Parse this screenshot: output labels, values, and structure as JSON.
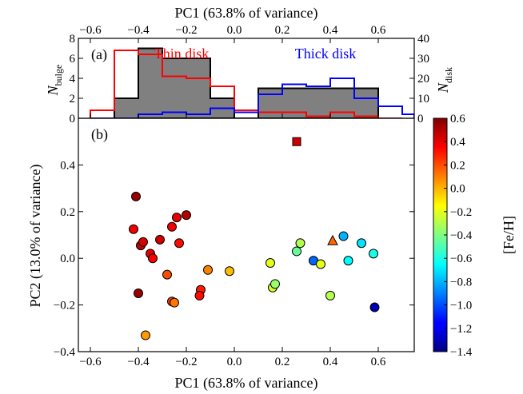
{
  "colors": {
    "bulge_fill": "#808080",
    "thin_disk": "#ff0000",
    "thick_disk": "#0000ff",
    "marker_edge": "#000000"
  },
  "chart_data": [
    {
      "type": "bar",
      "panel": "(a)",
      "title": "PC1 (63.8% of variance)",
      "xlabel": "PC1 (63.8% of variance)",
      "ylabel": "N",
      "ylabel_sub": "bulge",
      "y2label": "N",
      "y2label_sub": "disk",
      "xlim": [
        -0.65,
        0.75
      ],
      "ylim": [
        0,
        8
      ],
      "y2lim": [
        0,
        40
      ],
      "xticks": [
        "−0.6",
        "−0.4",
        "−0.2",
        "0.0",
        "0.2",
        "0.4",
        "0.6"
      ],
      "xtick_values": [
        -0.6,
        -0.4,
        -0.2,
        0.0,
        0.2,
        0.4,
        0.6
      ],
      "yticks": [
        "0",
        "2",
        "4",
        "6",
        "8"
      ],
      "ytick_values": [
        0,
        2,
        4,
        6,
        8
      ],
      "y2ticks": [
        "0",
        "10",
        "20",
        "30",
        "40"
      ],
      "y2tick_values": [
        0,
        10,
        20,
        30,
        40
      ],
      "series": [
        {
          "name": "Bulge",
          "axis": "left",
          "style": "filled",
          "bin_edges": [
            -0.5,
            -0.4,
            -0.3,
            -0.1,
            0.0,
            0.1,
            0.4,
            0.6
          ],
          "values": [
            2,
            7,
            6,
            2,
            0,
            3,
            3
          ]
        },
        {
          "name": "Thin disk",
          "axis": "right",
          "style": "step",
          "bin_edges": [
            -0.6,
            -0.5,
            -0.4,
            -0.3,
            -0.2,
            -0.1,
            0.0,
            0.1,
            0.2,
            0.3,
            0.4,
            0.5,
            0.6,
            0.7
          ],
          "values": [
            4,
            34,
            32,
            21,
            20,
            16,
            4,
            3,
            3,
            1,
            3,
            1,
            0
          ]
        },
        {
          "name": "Thick disk",
          "axis": "right",
          "style": "step",
          "bin_edges": [
            -0.6,
            -0.5,
            -0.4,
            -0.3,
            -0.2,
            -0.1,
            0.0,
            0.1,
            0.2,
            0.3,
            0.4,
            0.5,
            0.6,
            0.7,
            0.75
          ],
          "values": [
            0,
            0,
            2,
            3,
            2,
            5,
            3,
            12,
            17,
            16,
            20,
            10,
            6,
            2
          ]
        }
      ],
      "annotations": [
        {
          "text": "Thin disk",
          "x": -0.22,
          "y": 6.0,
          "color": "#ff0000"
        },
        {
          "text": "Thick disk",
          "x": 0.38,
          "y": 6.0,
          "color": "#0000ff"
        }
      ]
    },
    {
      "type": "scatter",
      "panel": "(b)",
      "xlabel": "PC1 (63.8% of variance)",
      "ylabel": "PC2 (13.0% of variance)",
      "xlim": [
        -0.65,
        0.75
      ],
      "ylim": [
        -0.4,
        0.6
      ],
      "xticks": [
        "−0.6",
        "−0.4",
        "−0.2",
        "0.0",
        "0.2",
        "0.4",
        "0.6"
      ],
      "xtick_values": [
        -0.6,
        -0.4,
        -0.2,
        0.0,
        0.2,
        0.4,
        0.6
      ],
      "yticks": [
        "−0.4",
        "−0.2",
        "0.0",
        "0.2",
        "0.4"
      ],
      "ytick_values": [
        -0.4,
        -0.2,
        0.0,
        0.2,
        0.4
      ],
      "colorbar": {
        "label": "[Fe/H]",
        "min": -1.4,
        "max": 0.6,
        "colormap": "jet",
        "ticks": [
          "0.6",
          "0.4",
          "0.2",
          "0.0",
          "−0.2",
          "−0.4",
          "−0.6",
          "−0.8",
          "−1.0",
          "−1.2",
          "−1.4"
        ],
        "tick_values": [
          0.6,
          0.4,
          0.2,
          0.0,
          -0.2,
          -0.4,
          -0.6,
          -0.8,
          -1.0,
          -1.2,
          -1.4
        ]
      },
      "points": [
        {
          "x": -0.41,
          "y": 0.265,
          "feh": 0.55,
          "marker": "circle"
        },
        {
          "x": -0.42,
          "y": 0.125,
          "feh": 0.38,
          "marker": "circle"
        },
        {
          "x": -0.39,
          "y": 0.055,
          "feh": 0.46,
          "marker": "circle"
        },
        {
          "x": -0.38,
          "y": 0.07,
          "feh": 0.42,
          "marker": "circle"
        },
        {
          "x": -0.35,
          "y": 0.02,
          "feh": 0.4,
          "marker": "circle"
        },
        {
          "x": -0.34,
          "y": 0.0,
          "feh": 0.36,
          "marker": "circle"
        },
        {
          "x": -0.31,
          "y": 0.08,
          "feh": 0.45,
          "marker": "circle"
        },
        {
          "x": -0.26,
          "y": 0.135,
          "feh": 0.38,
          "marker": "circle"
        },
        {
          "x": -0.24,
          "y": 0.175,
          "feh": 0.4,
          "marker": "circle"
        },
        {
          "x": -0.2,
          "y": 0.185,
          "feh": 0.5,
          "marker": "circle"
        },
        {
          "x": -0.23,
          "y": 0.065,
          "feh": 0.33,
          "marker": "circle"
        },
        {
          "x": -0.28,
          "y": -0.07,
          "feh": 0.2,
          "marker": "circle"
        },
        {
          "x": -0.26,
          "y": -0.185,
          "feh": 0.22,
          "marker": "circle"
        },
        {
          "x": -0.25,
          "y": -0.19,
          "feh": 0.12,
          "marker": "circle"
        },
        {
          "x": -0.4,
          "y": -0.15,
          "feh": 0.55,
          "marker": "circle"
        },
        {
          "x": -0.37,
          "y": -0.33,
          "feh": 0.05,
          "marker": "circle"
        },
        {
          "x": -0.14,
          "y": -0.135,
          "feh": 0.3,
          "marker": "circle"
        },
        {
          "x": -0.145,
          "y": -0.16,
          "feh": 0.33,
          "marker": "circle"
        },
        {
          "x": -0.11,
          "y": -0.05,
          "feh": 0.1,
          "marker": "circle"
        },
        {
          "x": -0.02,
          "y": -0.055,
          "feh": -0.02,
          "marker": "circle"
        },
        {
          "x": 0.15,
          "y": -0.02,
          "feh": -0.2,
          "marker": "circle"
        },
        {
          "x": 0.16,
          "y": -0.125,
          "feh": -0.22,
          "marker": "circle"
        },
        {
          "x": 0.17,
          "y": -0.11,
          "feh": -0.35,
          "marker": "circle"
        },
        {
          "x": 0.26,
          "y": 0.03,
          "feh": -0.45,
          "marker": "circle"
        },
        {
          "x": 0.275,
          "y": 0.065,
          "feh": -0.3,
          "marker": "circle"
        },
        {
          "x": 0.33,
          "y": -0.01,
          "feh": -0.95,
          "marker": "circle"
        },
        {
          "x": 0.36,
          "y": -0.025,
          "feh": -0.2,
          "marker": "circle"
        },
        {
          "x": 0.4,
          "y": -0.16,
          "feh": -0.3,
          "marker": "circle"
        },
        {
          "x": 0.455,
          "y": 0.095,
          "feh": -0.8,
          "marker": "circle"
        },
        {
          "x": 0.475,
          "y": -0.01,
          "feh": -0.65,
          "marker": "circle"
        },
        {
          "x": 0.53,
          "y": 0.065,
          "feh": -0.7,
          "marker": "circle"
        },
        {
          "x": 0.58,
          "y": 0.02,
          "feh": -0.6,
          "marker": "circle"
        },
        {
          "x": 0.585,
          "y": -0.21,
          "feh": -1.3,
          "marker": "circle"
        },
        {
          "x": 0.26,
          "y": 0.5,
          "feh": 0.45,
          "marker": "square"
        },
        {
          "x": 0.41,
          "y": 0.075,
          "feh": 0.15,
          "marker": "triangle"
        }
      ]
    }
  ]
}
